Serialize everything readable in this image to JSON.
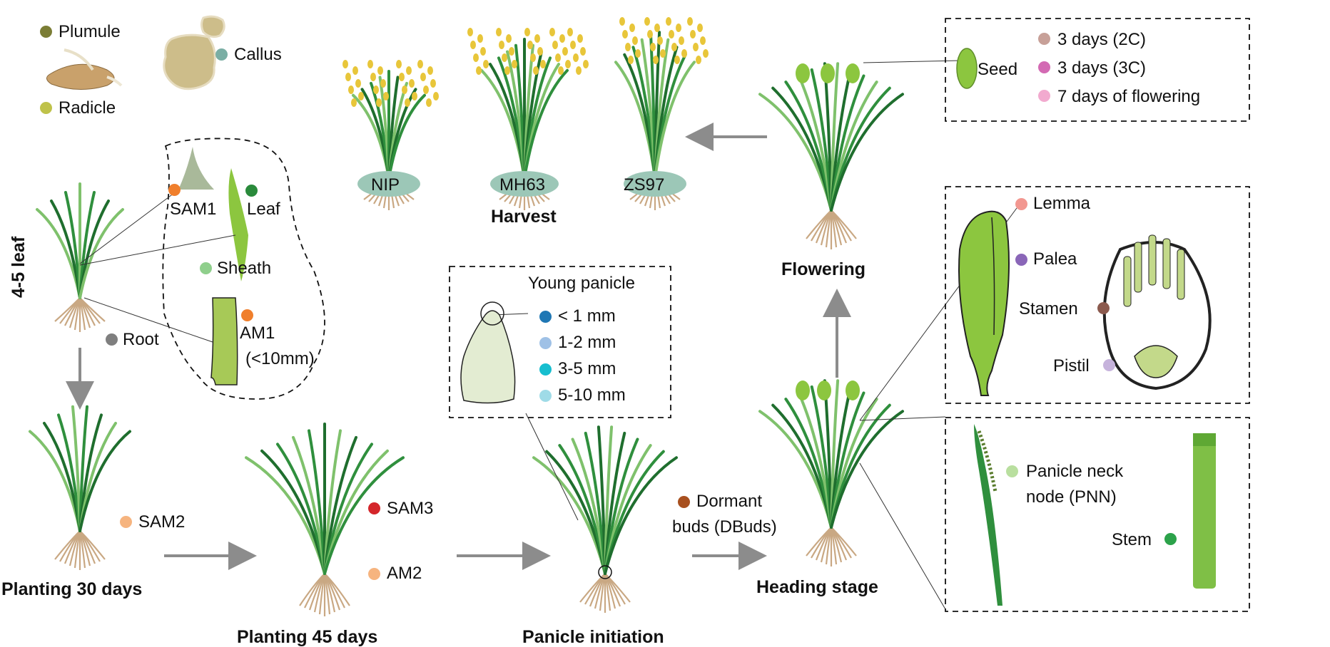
{
  "colors": {
    "plumule": "#7b7d35",
    "radicle": "#bfc24a",
    "callus": "#7aaea4",
    "orange": "#f07f2c",
    "leaf_green": "#2a8a3b",
    "sheath_green": "#8fcf8c",
    "root_grey": "#7f7f7f",
    "peach": "#f6b47f",
    "red": "#d4262b",
    "brown_dot": "#a8501f",
    "blue_lt1": "#9fc1e6",
    "blue_dk": "#1f77b4",
    "teal": "#17becf",
    "teal_lt": "#9fdbe7",
    "seed_2c": "#c7a098",
    "seed_3c": "#d36ab3",
    "seed_flower": "#f2aacf",
    "lemma": "#f29790",
    "palea": "#8a66b8",
    "stamen": "#8b5a4e",
    "pistil": "#c6b3dc",
    "pnn": "#b9df9f",
    "stem": "#2ca24a",
    "arrow": "#8c8c8c",
    "plant_dark": "#1f6e2e",
    "plant_mid": "#2f8f3d",
    "plant_light": "#7fc16c",
    "root": "#c9a883",
    "grain": "#e8c63a",
    "ground": "#9cc7b7"
  },
  "germination": {
    "plumule": "Plumule",
    "radicle": "Radicle",
    "callus": "Callus"
  },
  "leaf_stage": {
    "title": "4-5 leaf",
    "sam1": "SAM1",
    "leaf": "Leaf",
    "sheath": "Sheath",
    "am1_line1": "AM1",
    "am1_line2": "(<10mm)",
    "root": "Root"
  },
  "planting30": {
    "title": "Planting 30 days",
    "sam2": "SAM2"
  },
  "planting45": {
    "title": "Planting 45 days",
    "sam3": "SAM3",
    "am2": "AM2"
  },
  "panicle_initiation": {
    "title": "Panicle initiation",
    "dbuds_line1": "Dormant",
    "dbuds_line2": "buds (DBuds)",
    "young_panicle": "Young panicle",
    "sizes": [
      "< 1 mm",
      "1-2 mm",
      "3-5 mm",
      "5-10 mm"
    ]
  },
  "heading": {
    "title": "Heading stage"
  },
  "flowering": {
    "title": "Flowering"
  },
  "harvest": {
    "title": "Harvest",
    "varieties": [
      "NIP",
      "MH63",
      "ZS97"
    ]
  },
  "seed_box": {
    "seed": "Seed",
    "items": [
      "3 days (2C)",
      "3 days (3C)",
      "7 days of flowering"
    ]
  },
  "flower_box": {
    "lemma": "Lemma",
    "palea": "Palea",
    "stamen": "Stamen",
    "pistil": "Pistil"
  },
  "stem_box": {
    "pnn_line1": "Panicle neck",
    "pnn_line2": "node (PNN)",
    "stem": "Stem"
  }
}
